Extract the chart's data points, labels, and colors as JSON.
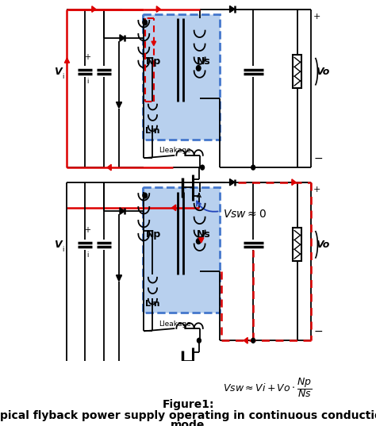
{
  "title": "Figure1:",
  "subtitle_line1": "Typical flyback power supply operating in continuous conduction",
  "subtitle_line2": "mode",
  "title_fontsize": 10,
  "subtitle_fontsize": 10,
  "bg_color": "#ffffff",
  "blue_box_color": "#b8d0ee",
  "blue_box_edge": "#4477cc",
  "red_color": "#dd0000",
  "black_color": "#000000",
  "blue_arrow_color": "#2244bb",
  "vsw1_text": "$Vsw \\approx 0$",
  "vsw2_text_1": "$Vsw \\approx Vi + Vo \\cdot$",
  "np_label": "Np",
  "ns_label": "Ns",
  "lm_label": "Lm",
  "lleakage_label": "Lleakage",
  "vi_label": "V",
  "vo_label": "Vo",
  "figure_width": 4.74,
  "figure_height": 5.37,
  "dpi": 100
}
